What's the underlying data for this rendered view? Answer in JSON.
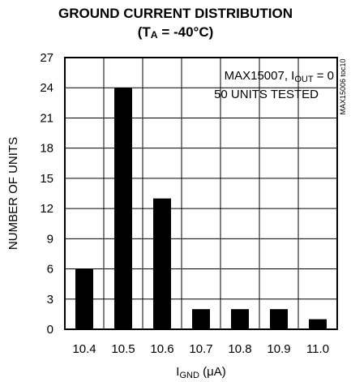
{
  "chart_data": {
    "type": "bar",
    "title": {
      "line1": "GROUND CURRENT DISTRIBUTION",
      "line2_prefix": "(T",
      "line2_sub": "A",
      "line2_suffix": " = -40°C)"
    },
    "xlabel": {
      "prefix": "I",
      "sub": "GND",
      "suffix": " (μA)"
    },
    "ylabel": "NUMBER OF UNITS",
    "categories": [
      "10.4",
      "10.5",
      "10.6",
      "10.7",
      "10.8",
      "10.9",
      "11.0"
    ],
    "values": [
      6,
      24,
      13,
      2,
      2,
      2,
      1
    ],
    "ylim": [
      0,
      27
    ],
    "yticks": [
      "0",
      "3",
      "6",
      "9",
      "12",
      "15",
      "18",
      "21",
      "24",
      "27"
    ],
    "grid": true,
    "annotation": {
      "line1_prefix": "MAX15007, I",
      "line1_sub": "OUT",
      "line1_suffix": " = 0",
      "line2": "50 UNITS TESTED"
    },
    "side_code": "MAX15006 toc10",
    "colors": {
      "bar": "#000000",
      "grid": "#000000",
      "background": "#ffffff"
    }
  }
}
